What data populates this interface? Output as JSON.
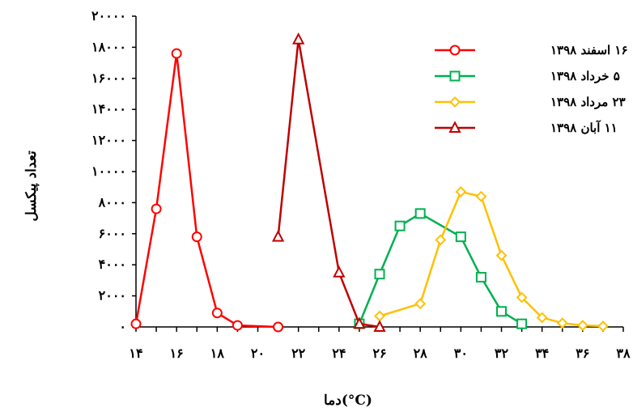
{
  "chart_data": {
    "type": "line",
    "title": "",
    "xlabel": "دما(°C)",
    "ylabel": "تعداد پیکسل",
    "xlim": [
      14,
      38
    ],
    "ylim": [
      0,
      20000
    ],
    "x_ticks": [
      14,
      16,
      18,
      20,
      22,
      24,
      26,
      28,
      30,
      32,
      34,
      36,
      38
    ],
    "x_tick_labels": [
      "۱۴",
      "۱۶",
      "۱۸",
      "۲۰",
      "۲۲",
      "۲۴",
      "۲۶",
      "۲۸",
      "۳۰",
      "۳۲",
      "۳۴",
      "۳۶",
      "۳۸"
    ],
    "y_ticks": [
      0,
      2000,
      4000,
      6000,
      8000,
      10000,
      12000,
      14000,
      16000,
      18000,
      20000
    ],
    "y_tick_labels": [
      "۰",
      "۲۰۰۰",
      "۴۰۰۰",
      "۶۰۰۰",
      "۸۰۰۰",
      "۱۰۰۰۰",
      "۱۲۰۰۰",
      "۱۴۰۰۰",
      "۱۶۰۰۰",
      "۱۸۰۰۰",
      "۲۰۰۰۰"
    ],
    "grid": false,
    "legend_position": "top-right",
    "series": [
      {
        "name": "۱۶ اسفند ۱۳۹۸",
        "color": "#ff0000",
        "marker": "circle",
        "x": [
          14,
          15,
          16,
          17,
          18,
          19,
          21
        ],
        "y": [
          200,
          7600,
          17600,
          5800,
          900,
          100,
          0
        ]
      },
      {
        "name": "۵ خرداد ۱۳۹۸",
        "color": "#00b050",
        "marker": "square",
        "x": [
          25,
          26,
          27,
          28,
          30,
          31,
          32,
          33
        ],
        "y": [
          200,
          3400,
          6500,
          7300,
          5800,
          3200,
          1000,
          200
        ]
      },
      {
        "name": "۲۳ مرداد ۱۳۹۸",
        "color": "#ffc000",
        "marker": "diamond",
        "x": [
          26,
          28,
          29,
          30,
          31,
          32,
          33,
          34,
          35,
          36,
          37
        ],
        "y": [
          700,
          1500,
          5600,
          8700,
          8400,
          4600,
          1900,
          600,
          250,
          100,
          50
        ]
      },
      {
        "name": "۱۱ آبان ۱۳۹۸",
        "color": "#c00000",
        "marker": "triangle",
        "x": [
          21,
          22,
          24,
          25,
          26
        ],
        "y": [
          5800,
          18500,
          3500,
          200,
          0
        ]
      }
    ]
  }
}
